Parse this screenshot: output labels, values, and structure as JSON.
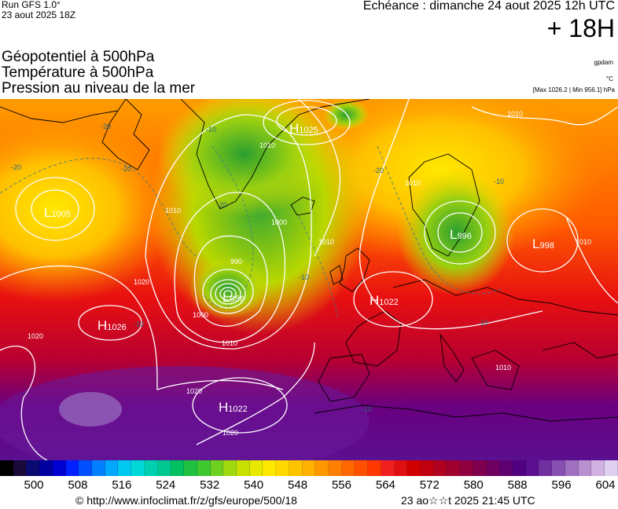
{
  "header": {
    "run_title": "Run GFS 1.0°",
    "run_date": "23 aout 2025 18Z",
    "echeance": "Echéance : dimanche 24 aout 2025 12h UTC",
    "offset": "+ 18H"
  },
  "fields": [
    "Géopotentiel à 500hPa",
    "Température à 500hPa",
    "Pression au niveau de la mer"
  ],
  "units": {
    "geopotential": "gpdam",
    "temperature": "°C",
    "maxmin": "[Max 1026.2 | Min 956.1] hPa"
  },
  "pressure_centers": [
    {
      "type": "H",
      "value": "1025"
    },
    {
      "type": "L",
      "value": "1005"
    },
    {
      "type": "L",
      "value": "956"
    },
    {
      "type": "H",
      "value": "1026"
    },
    {
      "type": "H",
      "value": "1022"
    },
    {
      "type": "H",
      "value": "1022"
    },
    {
      "type": "L",
      "value": "996"
    },
    {
      "type": "L",
      "value": "998"
    }
  ],
  "isobar_labels": [
    "1010",
    "1010",
    "1010",
    "1000",
    "990",
    "1000",
    "1010",
    "1020",
    "1020",
    "1020",
    "1020",
    "1010",
    "1010",
    "1010",
    "1010"
  ],
  "isotherm_labels": [
    "-20",
    "-20",
    "-20",
    "-10",
    "-20",
    "-20",
    "-10",
    "-10",
    "-10",
    "-10",
    "-10"
  ],
  "colorbar": {
    "ticks": [
      "500",
      "508",
      "516",
      "524",
      "532",
      "540",
      "548",
      "556",
      "564",
      "572",
      "580",
      "588",
      "596",
      "604"
    ],
    "colors": [
      "#000000",
      "#1a0a3a",
      "#0a0a70",
      "#0000a0",
      "#0000d0",
      "#0020ff",
      "#0050ff",
      "#0080ff",
      "#00a8ff",
      "#00c8f0",
      "#00d8d8",
      "#00d0b0",
      "#00c890",
      "#00c060",
      "#20c040",
      "#40c830",
      "#70d020",
      "#a0d810",
      "#c8e000",
      "#e8e800",
      "#ffe800",
      "#ffd800",
      "#ffc400",
      "#ffb000",
      "#ff9800",
      "#ff8000",
      "#ff6800",
      "#ff5000",
      "#ff3800",
      "#f02020",
      "#e01010",
      "#d00000",
      "#c00010",
      "#b00020",
      "#a00030",
      "#900040",
      "#800050",
      "#700060",
      "#600070",
      "#500080",
      "#5a1090",
      "#7030a0",
      "#8850b0",
      "#a070c0",
      "#b890d0",
      "#d0b0e0",
      "#e0d0f0"
    ]
  },
  "footer": {
    "credit": "© http://www.infoclimat.fr/z/gfs/europe/500/18",
    "timestamp": "23 ao☆☆t 2025 21:45 UTC"
  },
  "colors": {
    "isobar": "#ffffff",
    "land_border": "#000000",
    "isotherm": "#3a7a8a"
  }
}
